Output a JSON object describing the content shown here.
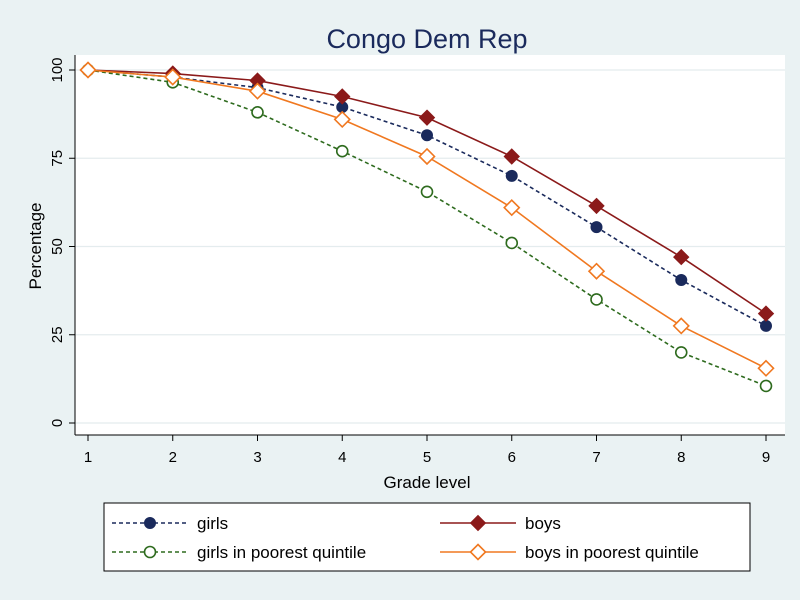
{
  "chart_data": {
    "type": "line",
    "title": "Congo Dem Rep",
    "xlabel": "Grade level",
    "ylabel": "Percentage",
    "x": [
      1,
      2,
      3,
      4,
      5,
      6,
      7,
      8,
      9
    ],
    "xticks": [
      "1",
      "2",
      "3",
      "4",
      "5",
      "6",
      "7",
      "8",
      "9"
    ],
    "yticks": [
      "0",
      "25",
      "50",
      "75",
      "100"
    ],
    "xlim": [
      1,
      9
    ],
    "ylim": [
      0,
      100
    ],
    "grid": true,
    "legend_position": "bottom",
    "series": [
      {
        "name": "girls",
        "key": "girls",
        "color": "#1a2a5c",
        "line": "dashed",
        "marker": "filled-circle",
        "values": [
          100,
          98,
          95,
          89.5,
          81.5,
          70,
          55.5,
          40.5,
          27.5
        ]
      },
      {
        "name": "boys",
        "key": "boys",
        "color": "#8b1a1a",
        "line": "solid",
        "marker": "filled-diamond",
        "values": [
          100,
          99,
          97,
          92.5,
          86.5,
          75.5,
          61.5,
          47,
          31
        ]
      },
      {
        "name": "girls in poorest quintile",
        "key": "girls-poorest",
        "color": "#2e6b1e",
        "line": "dashed",
        "marker": "hollow-circle",
        "values": [
          100,
          96.5,
          88,
          77,
          65.5,
          51,
          35,
          20,
          10.5
        ]
      },
      {
        "name": "boys in poorest quintile",
        "key": "boys-poorest",
        "color": "#f07820",
        "line": "solid",
        "marker": "hollow-diamond",
        "values": [
          100,
          98,
          94,
          86,
          75.5,
          61,
          43,
          27.5,
          15.5
        ]
      }
    ]
  }
}
